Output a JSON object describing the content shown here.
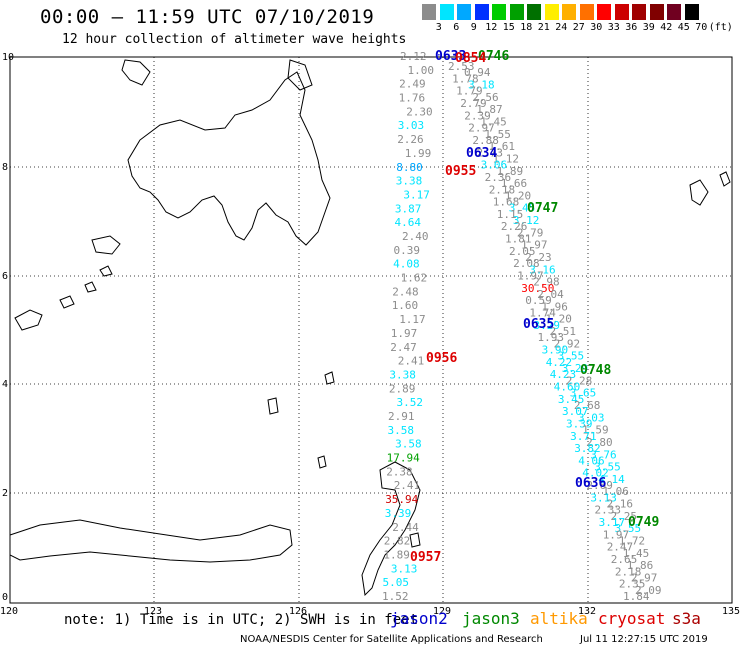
{
  "title": "00:00 – 11:59 UTC 07/10/2019",
  "subtitle": "12 hour collection of altimeter wave heights",
  "color_scale": {
    "labels": [
      "3",
      "6",
      "9",
      "12",
      "15",
      "18",
      "21",
      "24",
      "27",
      "30",
      "33",
      "36",
      "39",
      "42",
      "45",
      "70",
      "(ft)"
    ],
    "colors": [
      "#8c8c8c",
      "#00e5ff",
      "#00a8ff",
      "#0030ff",
      "#00cc00",
      "#00a000",
      "#007000",
      "#ffee00",
      "#ffb000",
      "#ff7000",
      "#ff0000",
      "#cc0000",
      "#a00000",
      "#800000",
      "#700020",
      "#000000"
    ]
  },
  "axes": {
    "y_ticks": [
      "10",
      "8",
      "6",
      "4",
      "2",
      "0"
    ],
    "x_ticks": [
      "120",
      "123",
      "126",
      "129",
      "132",
      "135"
    ]
  },
  "note": "note: 1) Time is in UTC; 2) SWH is in feet",
  "legend": [
    {
      "name": "jason2",
      "color": "#0000cc"
    },
    {
      "name": "jason3",
      "color": "#008800"
    },
    {
      "name": "altika",
      "color": "#ff9900"
    },
    {
      "name": "cryosat",
      "color": "#dd0000"
    },
    {
      "name": "s3a",
      "color": "#aa0000"
    }
  ],
  "footer_left": "NOAA/NESDIS Center for Satellite Applications and Research",
  "footer_right": "Jul 11 12:27:15 UTC 2019",
  "passes": [
    {
      "label": "0633",
      "color": "#0000cc"
    },
    {
      "label": "0746",
      "color": "#008800"
    },
    {
      "label": "0854",
      "color": "#dd0000"
    },
    {
      "label": "0634",
      "color": "#0000cc"
    },
    {
      "label": "0955",
      "color": "#dd0000"
    },
    {
      "label": "0747",
      "color": "#008800"
    },
    {
      "label": "0635",
      "color": "#0000cc"
    },
    {
      "label": "0956",
      "color": "#dd0000"
    },
    {
      "label": "0748",
      "color": "#008800"
    },
    {
      "label": "0636",
      "color": "#0000cc"
    },
    {
      "label": "0749",
      "color": "#008800"
    },
    {
      "label": "0957",
      "color": "#dd0000"
    }
  ],
  "track_a": [
    "2.12",
    "1.00",
    "2.49",
    "1.76",
    "2.30",
    "3.03",
    "2.26",
    "1.99",
    "8.80",
    "3.38",
    "3.17",
    "3.87",
    "4.64",
    "2.40",
    "0.39",
    "4.08",
    "1.62",
    "2.48",
    "1.60",
    "1.17",
    "1.97",
    "2.47",
    "2.41",
    "3.38",
    "2.89",
    "3.52",
    "2.91",
    "3.58",
    "3.58",
    "17.94",
    "2.38",
    "2.41",
    "35.94",
    "3.39",
    "2.44",
    "2.82",
    "1.89",
    "3.13",
    "5.05",
    "1.52"
  ],
  "track_b": [
    "2.53",
    "0.94",
    "1.78",
    "3.18",
    "1.79",
    "2.56",
    "2.79",
    "1.87",
    "2.39",
    "1.45",
    "2.97",
    "1.55",
    "2.88",
    "1.61",
    "2.73",
    "1.12",
    "3.06",
    "1.89",
    "2.36",
    "1.66",
    "2.18",
    "1.20",
    "1.68",
    "3.45",
    "1.15",
    "3.12",
    "2.26",
    "2.79",
    "1.81",
    "1.97",
    "2.05",
    "2.23",
    "2.08",
    "3.16",
    "1.97",
    "2.98",
    "30.50",
    "2.04",
    "0.59",
    "1.96",
    "1.74",
    "1.20",
    "3.29",
    "2.51",
    "1.93",
    "2.92",
    "3.90",
    "3.55",
    "4.22",
    "3.29",
    "4.23",
    "2.28",
    "4.60",
    "3.65",
    "3.45",
    "2.68",
    "3.07",
    "3.03",
    "3.39",
    "1.59",
    "3.71",
    "2.80",
    "3.82",
    "3.76",
    "4.06",
    "3.55",
    "4.02",
    "4.14",
    "2.69",
    "1.06",
    "3.13",
    "2.16",
    "2.33",
    "2.25",
    "3.17",
    "3.55",
    "1.97",
    "1.72",
    "2.47",
    "1.45",
    "2.65",
    "1.86",
    "2.18",
    "2.97",
    "2.35",
    "2.09",
    "1.84"
  ]
}
